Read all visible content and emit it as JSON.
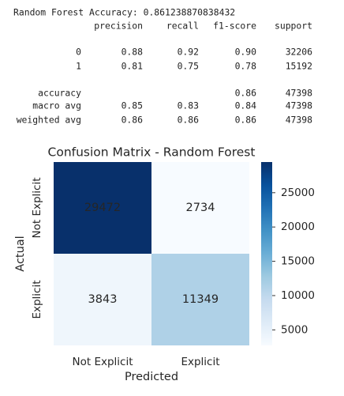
{
  "report": {
    "accuracy_line": "Random Forest Accuracy: 0.861238870838432",
    "header": [
      "precision",
      "recall",
      "f1-score",
      "support"
    ],
    "rows": [
      [
        "0",
        "0.88",
        "0.92",
        "0.90",
        "32206"
      ],
      [
        "1",
        "0.81",
        "0.75",
        "0.78",
        "15192"
      ],
      [
        "accuracy",
        null,
        null,
        "0.86",
        "47398"
      ],
      [
        "macro avg",
        "0.85",
        "0.83",
        "0.84",
        "47398"
      ],
      [
        "weighted avg",
        "0.86",
        "0.86",
        "0.86",
        "47398"
      ]
    ]
  },
  "chart_data": {
    "type": "heatmap",
    "title": "Confusion Matrix - Random Forest",
    "xlabel": "Predicted",
    "ylabel": "Actual",
    "x": [
      "Not Explicit",
      "Explicit"
    ],
    "y": [
      "Not Explicit",
      "Explicit"
    ],
    "values": [
      [
        29472,
        2734
      ],
      [
        3843,
        11349
      ]
    ],
    "colormap": "Blues",
    "clim": [
      2734,
      29472
    ],
    "cbar_ticks": [
      5000,
      10000,
      15000,
      20000,
      25000
    ]
  }
}
